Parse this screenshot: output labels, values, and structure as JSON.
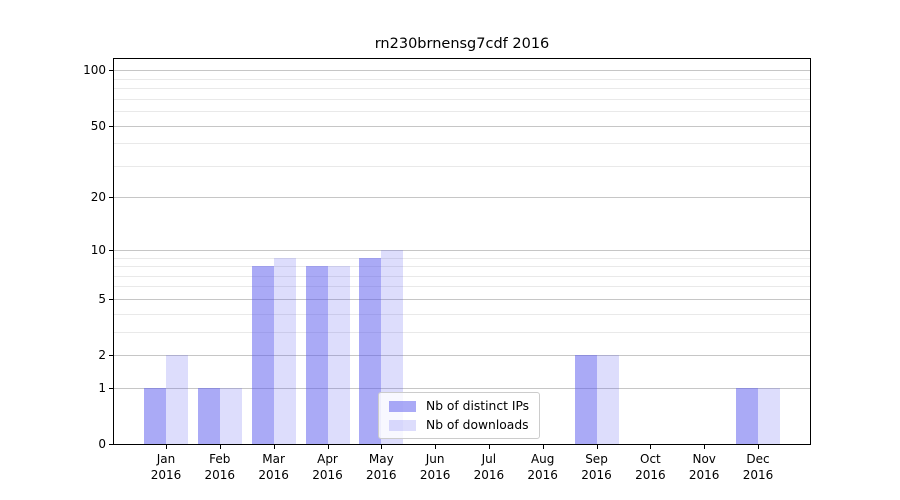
{
  "chart_data": {
    "type": "bar",
    "title": "rn230brnensg7cdf 2016",
    "categories": [
      "Jan 2016",
      "Feb 2016",
      "Mar 2016",
      "Apr 2016",
      "May 2016",
      "Jun 2016",
      "Jul 2016",
      "Aug 2016",
      "Sep 2016",
      "Oct 2016",
      "Nov 2016",
      "Dec 2016"
    ],
    "series": [
      {
        "name": "Nb of distinct IPs",
        "color": "rgba(85,85,238,0.5)",
        "values": [
          1,
          1,
          8,
          8,
          9,
          0,
          0,
          0,
          2,
          0,
          0,
          1
        ]
      },
      {
        "name": "Nb of downloads",
        "color": "rgba(85,85,238,0.2)",
        "values": [
          2,
          1,
          9,
          8,
          10,
          0,
          0,
          0,
          2,
          0,
          0,
          1
        ]
      }
    ],
    "xlabel": "",
    "ylabel": "",
    "yscale": "log1p",
    "ylim": [
      0,
      115
    ],
    "yticks": [
      0,
      1,
      2,
      5,
      10,
      20,
      50,
      100
    ],
    "minor_yticks": [
      3,
      4,
      6,
      7,
      8,
      9,
      30,
      40,
      60,
      70,
      80,
      90
    ],
    "grid": true,
    "legend_position": "lower-center"
  },
  "colors": {
    "major_grid": "#c6c6c6",
    "minor_grid": "#e9e9e9",
    "spine": "#000000",
    "background": "#ffffff"
  }
}
